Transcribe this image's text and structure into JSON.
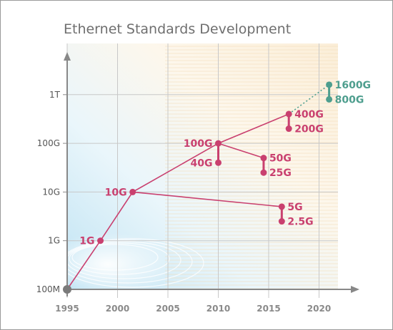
{
  "chart_data": {
    "type": "line",
    "title": "Ethernet Standards Development",
    "x_ticks": [
      "1995",
      "2000",
      "2005",
      "2010",
      "2015",
      "2020"
    ],
    "y_ticks": [
      "100M",
      "1G",
      "10G",
      "100G",
      "1T"
    ],
    "xlim": [
      1995,
      2022
    ],
    "y_scale": "log",
    "grid": true,
    "colors": {
      "main": "#c9406f",
      "future": "#4e9e8e",
      "origin": "#7a7a7a",
      "axis": "#888888",
      "grid": "#c8c8c8"
    },
    "main_path": [
      {
        "x": 1995,
        "y": "100M"
      },
      {
        "x": 1998.3,
        "y": "1G"
      },
      {
        "x": 2001.5,
        "y": "10G"
      },
      {
        "x": 2010,
        "y": "100G"
      },
      {
        "x": 2017,
        "y": "400G"
      }
    ],
    "branches": [
      {
        "from": {
          "x": 2001.5,
          "y": "10G"
        },
        "to": {
          "x": 2016.3,
          "y": "5G"
        }
      },
      {
        "from": {
          "x": 2010,
          "y": "100G"
        },
        "to": {
          "x": 2014.5,
          "y": "50G"
        }
      }
    ],
    "points": [
      {
        "label": "100M",
        "x": 1995,
        "y": "100M",
        "show_label": false,
        "color": "origin"
      },
      {
        "label": "1G",
        "x": 1998.3,
        "y": "1G",
        "color": "main",
        "label_side": "left"
      },
      {
        "label": "10G",
        "x": 2001.5,
        "y": "10G",
        "color": "main",
        "label_side": "left"
      },
      {
        "label": "100G",
        "x": 2010,
        "y": "100G",
        "color": "main",
        "label_side": "left"
      },
      {
        "label": "40G",
        "x": 2010,
        "y": "40G",
        "color": "main",
        "label_side": "left"
      },
      {
        "label": "400G",
        "x": 2017,
        "y": "400G",
        "color": "main",
        "label_side": "right"
      },
      {
        "label": "200G",
        "x": 2017,
        "y": "200G",
        "color": "main",
        "label_side": "right"
      },
      {
        "label": "50G",
        "x": 2014.5,
        "y": "50G",
        "color": "main",
        "label_side": "right"
      },
      {
        "label": "25G",
        "x": 2014.5,
        "y": "25G",
        "color": "main",
        "label_side": "right"
      },
      {
        "label": "5G",
        "x": 2016.3,
        "y": "5G",
        "color": "main",
        "label_side": "right"
      },
      {
        "label": "2.5G",
        "x": 2016.3,
        "y": "2.5G",
        "color": "main",
        "label_side": "right"
      },
      {
        "label": "1600G",
        "x": 2021,
        "y": "1600G",
        "color": "future",
        "label_side": "right"
      },
      {
        "label": "800G",
        "x": 2021,
        "y": "800G",
        "color": "future",
        "label_side": "right"
      }
    ],
    "verticals": [
      {
        "x": 2010,
        "y1": "100G",
        "y2": "40G",
        "color": "main"
      },
      {
        "x": 2017,
        "y1": "400G",
        "y2": "200G",
        "color": "main"
      },
      {
        "x": 2014.5,
        "y1": "50G",
        "y2": "25G",
        "color": "main"
      },
      {
        "x": 2016.3,
        "y1": "5G",
        "y2": "2.5G",
        "color": "main"
      },
      {
        "x": 2021,
        "y1": "1600G",
        "y2": "800G",
        "color": "future"
      }
    ],
    "dotted": [
      {
        "from": {
          "x": 2017,
          "y": "400G"
        },
        "to": {
          "x": 2021,
          "y": "1600G"
        },
        "color": "future"
      }
    ]
  }
}
